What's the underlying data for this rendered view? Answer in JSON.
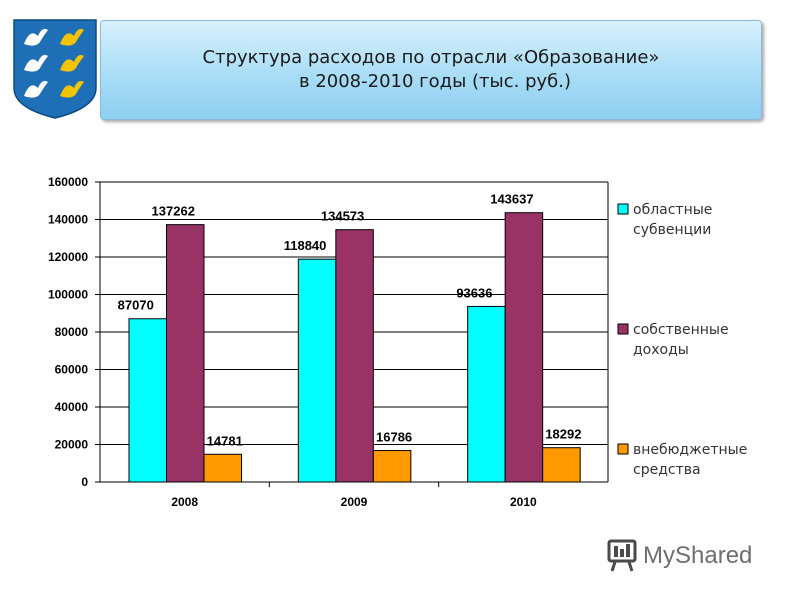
{
  "header": {
    "title_line1": "Структура расходов по отрасли «Образование»",
    "title_line2": "в  2008-2010 годы (тыс. руб.)"
  },
  "watermark": {
    "text": "MyShared"
  },
  "colors": {
    "regional": "#00ffff",
    "own": "#993366",
    "extra": "#ff9900",
    "title_bg": "#a9ddf6",
    "crest_blue": "#1e6fb6",
    "crest_gold": "#f2c400"
  },
  "chart_data": {
    "type": "bar",
    "categories": [
      "2008",
      "2009",
      "2010"
    ],
    "series": [
      {
        "name": "областные субвенции",
        "name_lines": [
          "областные",
          "субвенции"
        ],
        "values": [
          87070,
          118840,
          93636
        ],
        "color": "#00ffff"
      },
      {
        "name": "собственные доходы",
        "name_lines": [
          "собственные",
          "доходы"
        ],
        "values": [
          137262,
          134573,
          143637
        ],
        "color": "#993366"
      },
      {
        "name": "внебюджетные средства",
        "name_lines": [
          "внебюджетные",
          "средства"
        ],
        "values": [
          14781,
          16786,
          18292
        ],
        "color": "#ff9900"
      }
    ],
    "ylim": [
      0,
      160000
    ],
    "yticks": [
      "0",
      "20000",
      "40000",
      "60000",
      "80000",
      "100000",
      "120000",
      "140000",
      "160000"
    ],
    "grid": true,
    "legend_position": "right"
  }
}
